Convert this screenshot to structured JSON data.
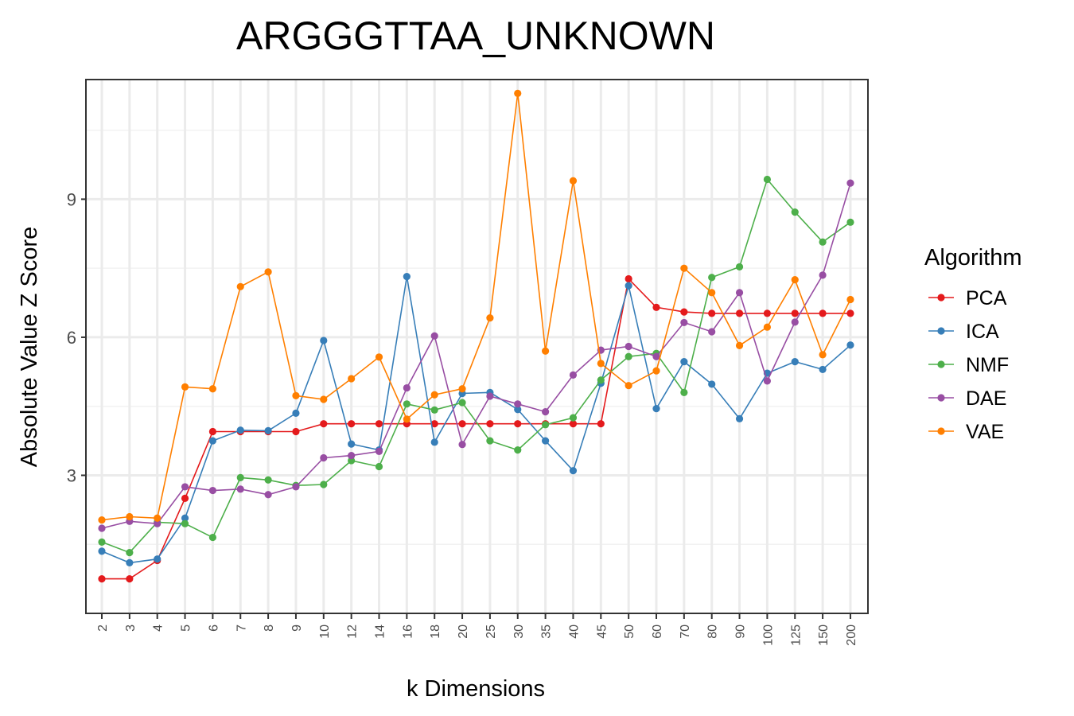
{
  "chart_data": {
    "type": "line",
    "title": "ARGGGTTAA_UNKNOWN",
    "xlabel": "k Dimensions",
    "ylabel": "Absolute Value Z Score",
    "categories": [
      "2",
      "3",
      "4",
      "5",
      "6",
      "7",
      "8",
      "9",
      "10",
      "12",
      "14",
      "16",
      "18",
      "20",
      "25",
      "30",
      "35",
      "40",
      "45",
      "50",
      "60",
      "70",
      "80",
      "90",
      "100",
      "125",
      "150",
      "200"
    ],
    "yticks": [
      3,
      6,
      9
    ],
    "ylim": [
      0.0,
      11.6
    ],
    "grid": true,
    "legend": {
      "title": "Algorithm",
      "position": "right"
    },
    "series": [
      {
        "name": "PCA",
        "color": "#e41a1c",
        "values": [
          0.75,
          0.75,
          1.15,
          2.5,
          3.95,
          3.95,
          3.95,
          3.95,
          4.12,
          4.12,
          4.12,
          4.12,
          4.12,
          4.12,
          4.12,
          4.12,
          4.12,
          4.12,
          4.12,
          7.27,
          6.65,
          6.55,
          6.52,
          6.52,
          6.52,
          6.52,
          6.52,
          6.52
        ]
      },
      {
        "name": "ICA",
        "color": "#377eb8",
        "values": [
          1.35,
          1.1,
          1.18,
          2.07,
          3.75,
          3.98,
          3.97,
          4.35,
          5.93,
          3.68,
          3.55,
          7.32,
          3.72,
          4.78,
          4.8,
          4.43,
          3.75,
          3.1,
          5.0,
          7.12,
          4.45,
          5.47,
          4.98,
          4.23,
          5.22,
          5.47,
          5.3,
          5.83
        ]
      },
      {
        "name": "NMF",
        "color": "#4daf4a",
        "values": [
          1.55,
          1.32,
          1.98,
          1.95,
          1.65,
          2.95,
          2.9,
          2.78,
          2.8,
          3.32,
          3.19,
          4.55,
          4.42,
          4.58,
          3.75,
          3.55,
          4.1,
          4.25,
          5.07,
          5.58,
          5.65,
          4.8,
          7.3,
          7.53,
          9.43,
          8.72,
          8.07,
          8.5
        ]
      },
      {
        "name": "DAE",
        "color": "#984ea3",
        "values": [
          1.85,
          2.0,
          1.95,
          2.75,
          2.67,
          2.7,
          2.58,
          2.75,
          3.38,
          3.43,
          3.52,
          4.9,
          6.03,
          3.67,
          4.72,
          4.55,
          4.38,
          5.18,
          5.72,
          5.8,
          5.58,
          6.32,
          6.12,
          6.97,
          5.05,
          6.33,
          7.35,
          9.35
        ]
      },
      {
        "name": "VAE",
        "color": "#ff7f00",
        "values": [
          2.03,
          2.1,
          2.07,
          4.92,
          4.88,
          7.1,
          7.42,
          4.73,
          4.65,
          5.1,
          5.57,
          4.22,
          4.75,
          4.88,
          6.42,
          11.3,
          5.7,
          9.4,
          5.43,
          4.95,
          5.27,
          7.5,
          6.97,
          5.82,
          6.22,
          7.25,
          5.62,
          6.82
        ]
      }
    ]
  }
}
